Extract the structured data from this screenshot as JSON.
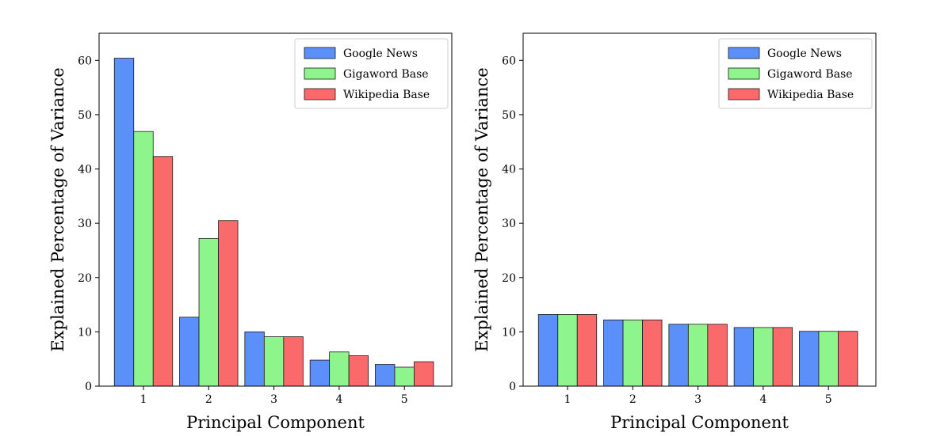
{
  "chart_data": [
    {
      "type": "bar",
      "id": "left",
      "categories": [
        "1",
        "2",
        "3",
        "4",
        "5"
      ],
      "series": [
        {
          "name": "Google News",
          "color": "#5b8ff9",
          "values": [
            60.4,
            12.7,
            10.0,
            4.8,
            4.0
          ]
        },
        {
          "name": "Gigaword Base",
          "color": "#8ef58c",
          "values": [
            46.9,
            27.2,
            9.1,
            6.3,
            3.5
          ]
        },
        {
          "name": "Wikipedia Base",
          "color": "#fb6a6a",
          "values": [
            42.3,
            30.5,
            9.1,
            5.6,
            4.5
          ]
        }
      ],
      "xlabel": "Principal Component",
      "ylabel": "Explained Percentage of Variance",
      "ylim": [
        0,
        65
      ],
      "yticks": [
        "0",
        "10",
        "20",
        "30",
        "40",
        "50",
        "60"
      ],
      "legend": "top-right"
    },
    {
      "type": "bar",
      "id": "right",
      "categories": [
        "1",
        "2",
        "3",
        "4",
        "5"
      ],
      "series": [
        {
          "name": "Google News",
          "color": "#5b8ff9",
          "values": [
            13.2,
            12.2,
            11.4,
            10.8,
            10.1
          ]
        },
        {
          "name": "Gigaword Base",
          "color": "#8ef58c",
          "values": [
            13.2,
            12.2,
            11.4,
            10.8,
            10.1
          ]
        },
        {
          "name": "Wikipedia Base",
          "color": "#fb6a6a",
          "values": [
            13.2,
            12.2,
            11.4,
            10.8,
            10.1
          ]
        }
      ],
      "xlabel": "Principal Component",
      "ylabel": "Explained Percentage of Variance",
      "ylim": [
        0,
        65
      ],
      "yticks": [
        "0",
        "10",
        "20",
        "30",
        "40",
        "50",
        "60"
      ],
      "legend": "top-right"
    }
  ]
}
